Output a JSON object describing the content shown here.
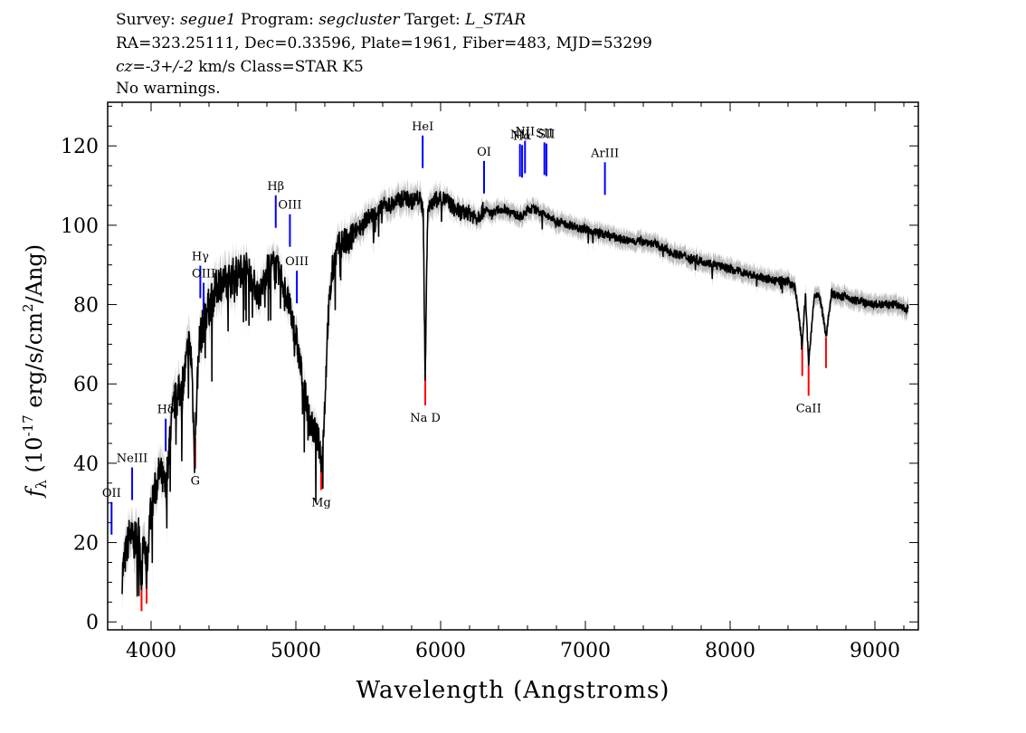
{
  "header": {
    "survey_label": "Survey: ",
    "survey": "segue1",
    "program_label": " Program: ",
    "program": "segcluster",
    "target_label": " Target: ",
    "target": "L_STAR",
    "line2": "RA=323.25111, Dec=0.33596, Plate=1961, Fiber=483, MJD=53299",
    "cz": "cz=-3+/-2",
    "line3_rest": " km/s Class=STAR K5",
    "line4": "No warnings."
  },
  "chart_data": {
    "type": "line",
    "title": "",
    "xlabel": "Wavelength (Angstroms)",
    "ylabel_parts": [
      "f",
      "λ",
      " (10",
      "-17",
      " erg/s/cm",
      "2",
      "/Ang)"
    ],
    "xlim": [
      3700,
      9300
    ],
    "ylim": [
      -2,
      131
    ],
    "xticks": [
      4000,
      5000,
      6000,
      7000,
      8000,
      9000
    ],
    "yticks": [
      0,
      20,
      40,
      60,
      80,
      100,
      120
    ],
    "colors": {
      "flux": "#000000",
      "error_band": "#bbbbbb",
      "emission": "#0000ff",
      "absorption": "#ff0000"
    },
    "series": [
      {
        "x": [
          3800,
          3830,
          3850,
          3880,
          3900,
          3920,
          3933,
          3950,
          3968,
          3990,
          4020,
          4060,
          4101,
          4130,
          4160,
          4200,
          4230,
          4260,
          4280,
          4300,
          4330,
          4380,
          4420,
          4470,
          4520,
          4560,
          4600,
          4650,
          4700,
          4750,
          4800,
          4850,
          4900,
          4950,
          5000,
          5050,
          5100,
          5130,
          5160,
          5180,
          5200,
          5220,
          5250,
          5280,
          5320,
          5360,
          5400,
          5450,
          5500,
          5550,
          5600,
          5650,
          5700,
          5750,
          5800,
          5850,
          5880,
          5893,
          5910,
          5950,
          6000,
          6050,
          6100,
          6150,
          6200,
          6250,
          6300,
          6350,
          6400,
          6450,
          6500,
          6563,
          6600,
          6650,
          6700,
          6750,
          6800,
          6900,
          7000,
          7100,
          7200,
          7300,
          7400,
          7500,
          7600,
          7700,
          7800,
          7900,
          8000,
          8100,
          8200,
          8300,
          8400,
          8450,
          8498,
          8520,
          8542,
          8580,
          8620,
          8662,
          8700,
          8750,
          8800,
          8850,
          8900,
          8950,
          9000,
          9050,
          9100,
          9150,
          9200,
          9230
        ],
        "y": [
          12,
          18,
          22,
          20,
          21,
          23,
          10,
          22,
          12,
          26,
          32,
          38,
          33,
          47,
          55,
          58,
          62,
          70,
          66,
          42,
          70,
          78,
          81,
          86,
          85,
          87,
          88,
          90,
          86,
          82,
          89,
          90,
          87,
          80,
          72,
          60,
          50,
          48,
          45,
          40,
          55,
          75,
          88,
          93,
          96,
          95,
          98,
          100,
          102,
          103,
          105,
          105,
          106,
          107,
          106,
          107,
          104,
          60,
          104,
          106,
          107,
          106,
          104,
          103,
          103,
          102,
          104,
          103,
          104,
          104,
          103,
          102,
          104,
          104,
          103,
          102,
          101,
          100,
          99,
          98,
          97,
          96,
          96,
          95,
          93,
          92,
          91,
          90,
          89,
          88,
          87,
          86,
          86,
          84,
          70,
          83,
          65,
          82,
          82,
          72,
          83,
          82,
          82,
          81,
          81,
          80,
          80,
          80,
          80,
          80,
          79,
          79
        ]
      }
    ],
    "emission_lines": [
      {
        "label": "OII",
        "wavelength": 3727
      },
      {
        "label": "NeIII",
        "wavelength": 3869
      },
      {
        "label": "Hδ",
        "wavelength": 4101
      },
      {
        "label": "Hγ",
        "wavelength": 4340
      },
      {
        "label": "OIII",
        "wavelength": 4363
      },
      {
        "label": "Hβ",
        "wavelength": 4861
      },
      {
        "label": "OIII",
        "wavelength": 4959
      },
      {
        "label": "OIII",
        "wavelength": 5007
      },
      {
        "label": "HeI",
        "wavelength": 5876
      },
      {
        "label": "OI",
        "wavelength": 6300
      },
      {
        "label": "NII",
        "wavelength": 6548
      },
      {
        "label": "Hα",
        "wavelength": 6563
      },
      {
        "label": "NII",
        "wavelength": 6583
      },
      {
        "label": "SII",
        "wavelength": 6717
      },
      {
        "label": "SII",
        "wavelength": 6731
      },
      {
        "label": "ArIII",
        "wavelength": 7135
      }
    ],
    "absorption_lines": [
      {
        "label": "",
        "wavelength": 3934
      },
      {
        "label": "",
        "wavelength": 3969
      },
      {
        "label": "G",
        "wavelength": 4305
      },
      {
        "label": "Mg",
        "wavelength": 5175
      },
      {
        "label": "Na D",
        "wavelength": 5894
      },
      {
        "label": "",
        "wavelength": 8498
      },
      {
        "label": "CaII",
        "wavelength": 8542
      },
      {
        "label": "",
        "wavelength": 8662
      }
    ]
  }
}
